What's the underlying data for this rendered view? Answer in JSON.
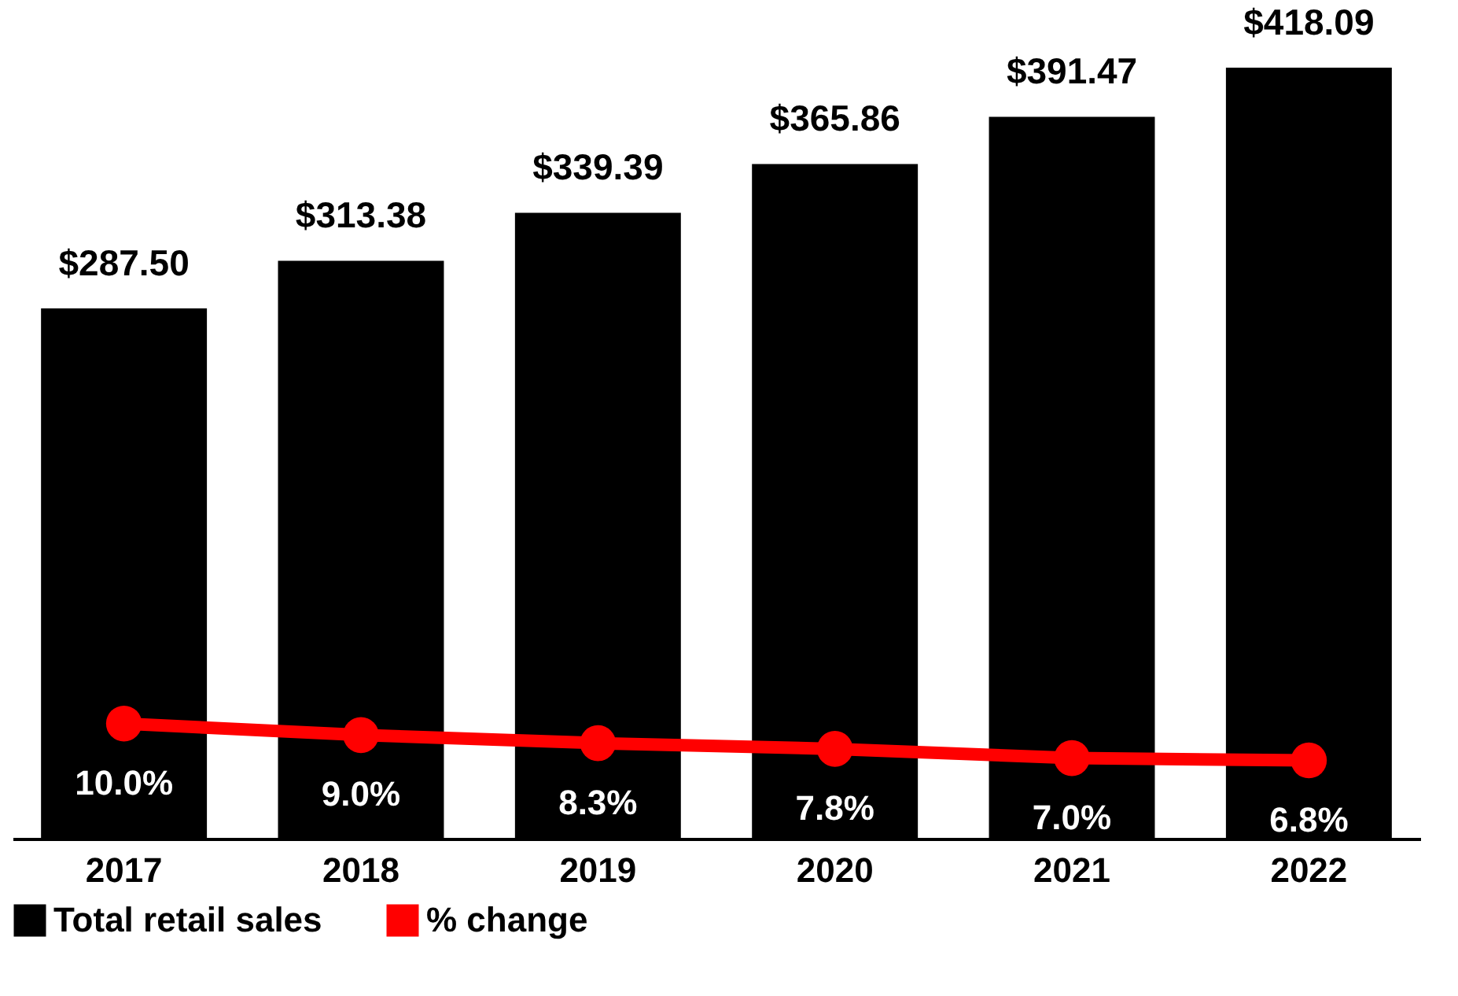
{
  "chart_data": {
    "type": "bar",
    "categories": [
      "2017",
      "2018",
      "2019",
      "2020",
      "2021",
      "2022"
    ],
    "legend": "bottom",
    "marker": "circle",
    "series": [
      {
        "name": "Total retail sales",
        "color": "#000000",
        "values": [
          287.5,
          313.38,
          339.39,
          365.86,
          391.47,
          418.09
        ],
        "value_labels": [
          "$287.50",
          "$313.38",
          "$339.39",
          "$365.86",
          "$391.47",
          "$418.09"
        ]
      },
      {
        "name": "% change",
        "type": "line",
        "axis": "y2",
        "color": "#ff0000",
        "values": [
          10.0,
          9.0,
          8.3,
          7.8,
          7.0,
          6.8
        ],
        "value_labels": [
          "10.0%",
          "9.0%",
          "8.3%",
          "7.8%",
          "7.0%",
          "6.8%"
        ]
      }
    ]
  }
}
